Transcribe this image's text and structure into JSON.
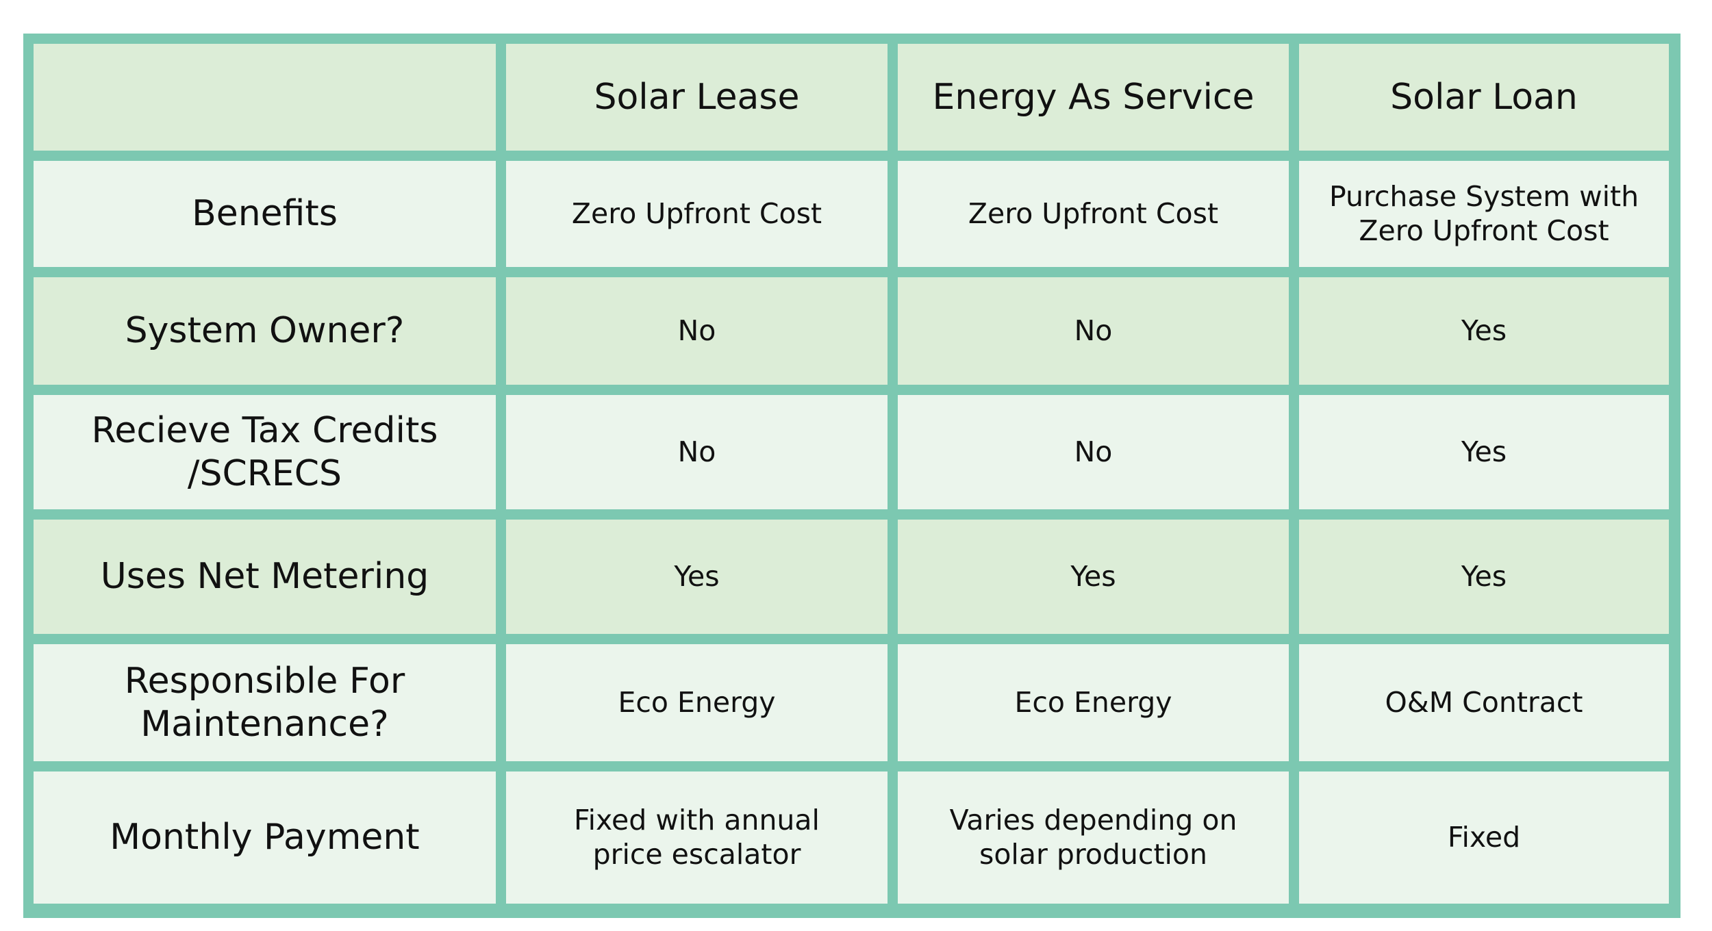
{
  "table": {
    "corner": "",
    "columns": [
      "Solar Lease",
      "Energy As Service",
      "Solar Loan"
    ],
    "rows": [
      {
        "label": "Benefits",
        "values": [
          "Zero Upfront Cost",
          "Zero Upfront Cost",
          "Purchase System with\nZero Upfront Cost"
        ]
      },
      {
        "label": "System Owner?",
        "values": [
          "No",
          "No",
          "Yes"
        ]
      },
      {
        "label": "Recieve Tax Credits\n/SCRECS",
        "values": [
          "No",
          "No",
          "Yes"
        ]
      },
      {
        "label": "Uses Net Metering",
        "values": [
          "Yes",
          "Yes",
          "Yes"
        ]
      },
      {
        "label": "Responsible For\nMaintenance?",
        "values": [
          "Eco Energy",
          "Eco Energy",
          "O&M Contract"
        ]
      },
      {
        "label": "Monthly Payment",
        "values": [
          "Fixed with annual\nprice escalator",
          "Varies depending on\nsolar production",
          "Fixed"
        ]
      }
    ]
  },
  "colors": {
    "border": "#7cc8b1",
    "header_fill": "#dcedd7",
    "light_fill": "#ebf5ec",
    "dark_fill": "#dcedd7"
  }
}
